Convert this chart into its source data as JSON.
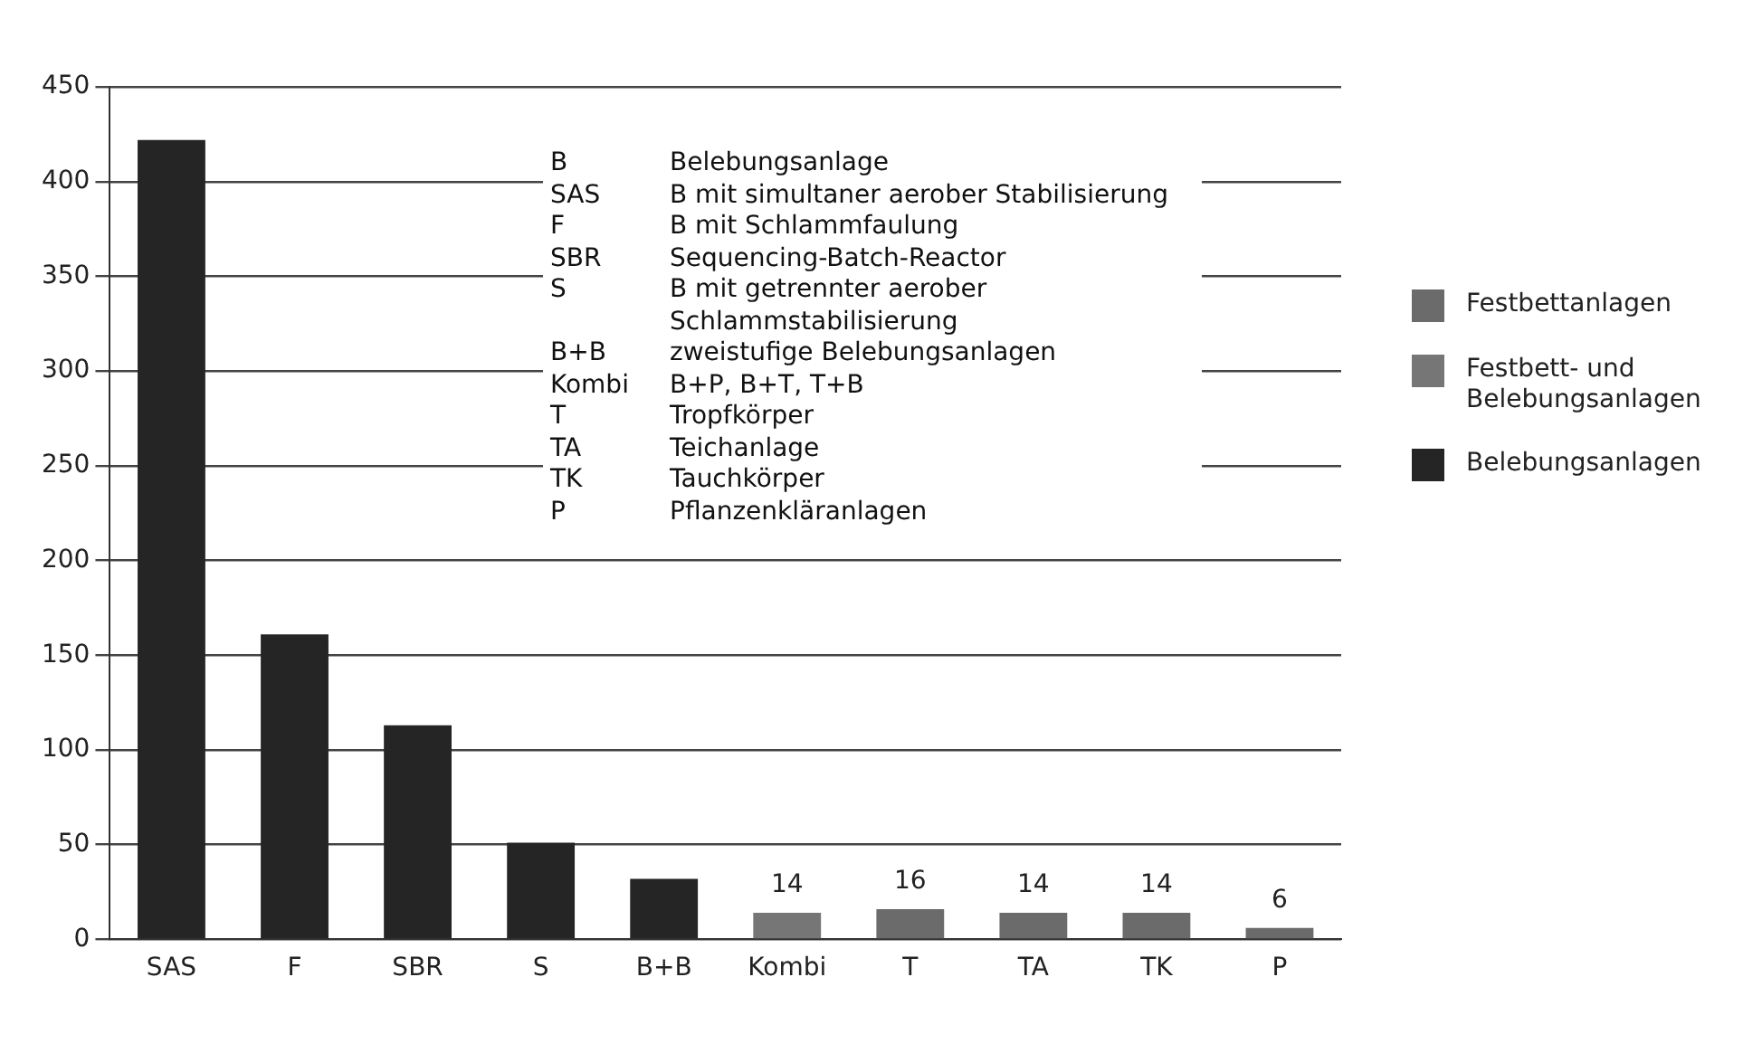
{
  "chart_data": {
    "type": "bar",
    "categories": [
      "SAS",
      "F",
      "SBR",
      "S",
      "B+B",
      "Kombi",
      "T",
      "TA",
      "TK",
      "P"
    ],
    "series": [
      {
        "name": "Festbettanlagen",
        "color": "#6b6b6b",
        "values": [
          null,
          null,
          null,
          null,
          null,
          null,
          16,
          14,
          14,
          6
        ],
        "value_labels": [
          null,
          null,
          null,
          null,
          null,
          null,
          "16",
          "14",
          "14",
          "6"
        ]
      },
      {
        "name": "Festbett- und Belebungsanlagen",
        "color": "#767676",
        "values": [
          null,
          null,
          null,
          null,
          null,
          14,
          null,
          null,
          null,
          null
        ],
        "value_labels": [
          null,
          null,
          null,
          null,
          null,
          "14",
          null,
          null,
          null,
          null
        ]
      },
      {
        "name": "Belebungsanlagen",
        "color": "#252525",
        "values": [
          422,
          161,
          113,
          51,
          32,
          null,
          null,
          null,
          null,
          null
        ]
      }
    ],
    "ylim": [
      0,
      450
    ],
    "yticks": [
      0,
      50,
      100,
      150,
      200,
      250,
      300,
      350,
      400,
      450
    ],
    "grid": "y",
    "legend": "right",
    "annotations": [
      "B\tBelebungsanlage",
      "SAS\tB mit simultaner aerober Stabilisierung",
      "F\tB mit Schlammfaulung",
      "SBR\tSequencing-Batch-Reactor",
      "S\tB mit getrennter aerober Schlammstabilisierung",
      "B+B\tzweistufige Belebungsanlagen",
      "Kombi\tB+P, B+T, T+B",
      "T\tTropfkörper",
      "TA\tTeichanlage",
      "TK\tTauchkörper",
      "P\tPflanzenkläranlagen"
    ]
  }
}
